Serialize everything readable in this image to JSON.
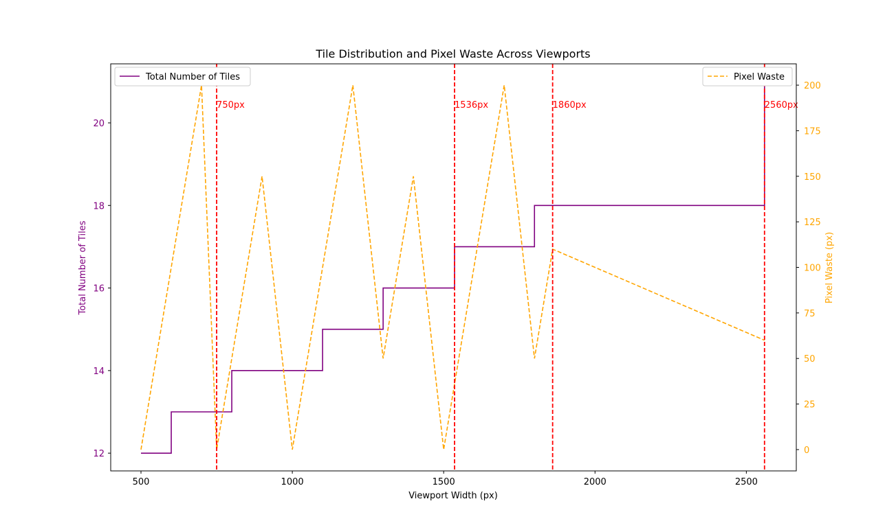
{
  "chart_data": {
    "type": "line",
    "title": "Tile Distribution and Pixel Waste Across Viewports",
    "xlabel": "Viewport Width (px)",
    "xlim": [
      400,
      2665
    ],
    "x_ticks": [
      500,
      1000,
      1500,
      2000,
      2500
    ],
    "y_left": {
      "label": "Total Number of Tiles",
      "lim": [
        11.57,
        21.43
      ],
      "ticks": [
        12,
        14,
        16,
        18,
        20
      ],
      "color": "#800080"
    },
    "y_right": {
      "label": "Pixel Waste (px)",
      "lim": [
        -11.7,
        211.7
      ],
      "ticks": [
        0,
        25,
        50,
        75,
        100,
        125,
        150,
        175,
        200
      ],
      "color": "#FFA500"
    },
    "series": [
      {
        "name": "Total Number of Tiles",
        "axis": "left",
        "style": "step-post",
        "color": "#800080",
        "x": [
          500,
          600,
          800,
          1100,
          1300,
          1536,
          1800,
          2560
        ],
        "values": [
          12,
          13,
          14,
          15,
          16,
          17,
          18,
          21
        ]
      },
      {
        "name": "Pixel Waste",
        "axis": "right",
        "style": "dashed",
        "color": "#FFA500",
        "x": [
          500,
          700,
          750,
          900,
          1000,
          1200,
          1300,
          1400,
          1500,
          1700,
          1800,
          1860,
          2560
        ],
        "values": [
          0,
          200,
          0,
          150,
          0,
          200,
          50,
          150,
          0,
          200,
          50,
          110,
          60
        ]
      }
    ],
    "breakpoints": {
      "color": "#FF0000",
      "values": [
        750,
        1536,
        1860,
        2560
      ],
      "labels": [
        "750px",
        "1536px",
        "1860px",
        "2560px"
      ]
    },
    "legend_left": {
      "position": "upper-left",
      "label": "Total Number of Tiles"
    },
    "legend_right": {
      "position": "upper-right",
      "label": "Pixel Waste"
    },
    "grid": false
  }
}
